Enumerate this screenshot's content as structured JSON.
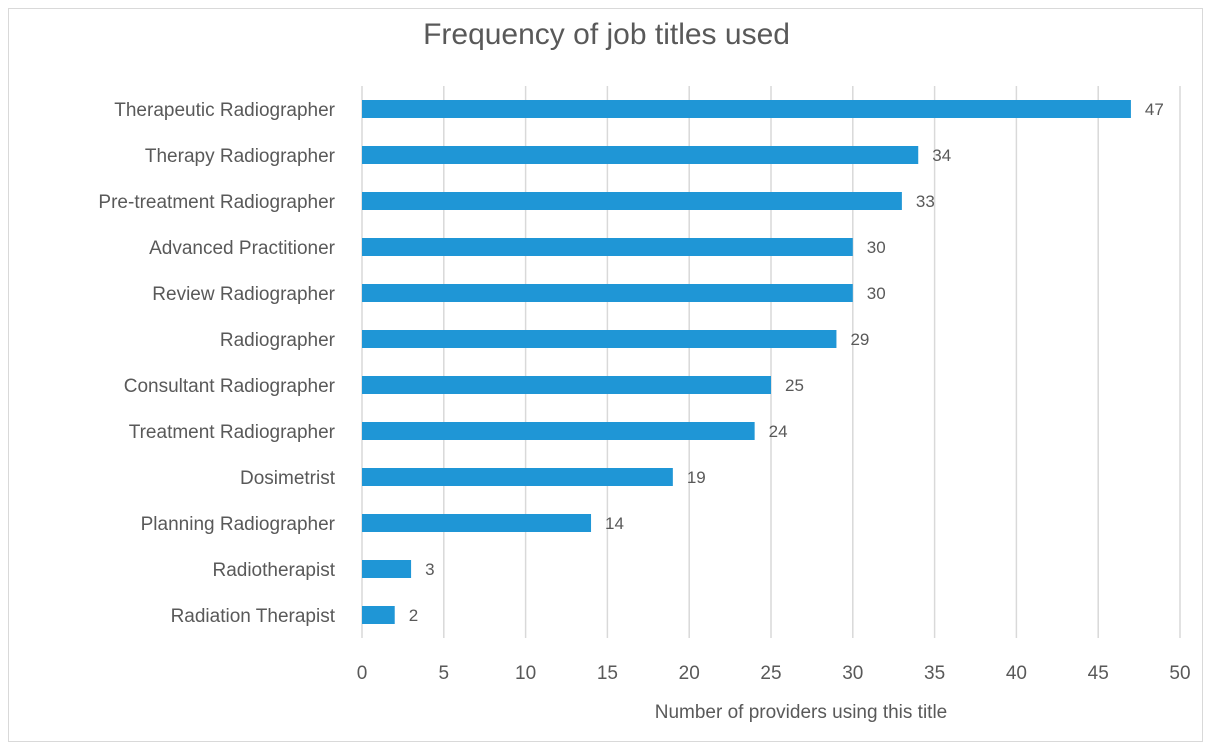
{
  "chart_data": {
    "type": "bar",
    "orientation": "horizontal",
    "title": "Frequency of job titles used",
    "xlabel": "Number of providers using this title",
    "ylabel": "",
    "categories": [
      "Therapeutic Radiographer",
      "Therapy Radiographer",
      "Pre-treatment Radiographer",
      "Advanced Practitioner",
      "Review Radiographer",
      "Radiographer",
      "Consultant Radiographer",
      "Treatment Radiographer",
      "Dosimetrist",
      "Planning Radiographer",
      "Radiotherapist",
      "Radiation Therapist"
    ],
    "values": [
      47,
      34,
      33,
      30,
      30,
      29,
      25,
      24,
      19,
      14,
      3,
      2
    ],
    "xlim": [
      0,
      50
    ],
    "xticks": [
      0,
      5,
      10,
      15,
      20,
      25,
      30,
      35,
      40,
      45,
      50
    ],
    "grid": "vertical",
    "legend": "none",
    "bar_color": "#1f96d6",
    "gridline_color": "#d9d9d9"
  }
}
